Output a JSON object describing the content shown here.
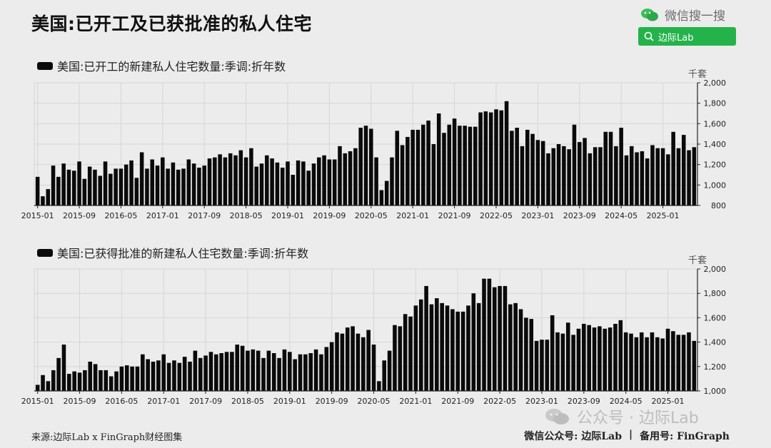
{
  "header": {
    "title": "美国:已开工及已获批准的私人住宅",
    "wechat_label": "微信搜一搜",
    "search_label": "边际Lab",
    "wechat_icon": "wechat-icon",
    "search_icon": "search-icon",
    "accent_color": "#24b34a"
  },
  "footer": {
    "source": "来源:边际Lab x FinGraph财经图集",
    "account": "微信公众号: 边际Lab",
    "separator": "|",
    "backup": "备用号: FinGraph",
    "watermark": "公众号 · 边际Lab"
  },
  "chart_data": [
    {
      "type": "bar",
      "legend": "美国:已开工的新建私人住宅数量:季调:折年数",
      "unit": "千套",
      "ylim": [
        800,
        2000
      ],
      "yticks": [
        800,
        1000,
        1200,
        1400,
        1600,
        1800,
        2000
      ],
      "ytick_labels": [
        "800",
        "1,000",
        "1,200",
        "1,400",
        "1,600",
        "1,800",
        "2,000"
      ],
      "grid": true,
      "bar_color": "#0a0a0a",
      "x_tick_labels": [
        "2015-01",
        "2015-09",
        "2016-05",
        "2017-01",
        "2017-09",
        "2018-05",
        "2019-01",
        "2019-09",
        "2020-05",
        "2021-01",
        "2021-09",
        "2022-05",
        "2023-01",
        "2023-09",
        "2024-05",
        "2025-01"
      ],
      "x_tick_every": 8,
      "start_month": "2015-01",
      "values": [
        1080,
        890,
        960,
        1190,
        1080,
        1210,
        1150,
        1140,
        1230,
        1060,
        1180,
        1150,
        1090,
        1230,
        1110,
        1160,
        1160,
        1200,
        1240,
        1070,
        1320,
        1160,
        1250,
        1190,
        1270,
        1160,
        1220,
        1150,
        1160,
        1250,
        1210,
        1170,
        1190,
        1260,
        1270,
        1300,
        1270,
        1310,
        1290,
        1340,
        1270,
        1360,
        1180,
        1210,
        1290,
        1260,
        1220,
        1170,
        1230,
        1100,
        1240,
        1230,
        1140,
        1210,
        1270,
        1290,
        1250,
        1250,
        1380,
        1310,
        1330,
        1360,
        1560,
        1580,
        1550,
        1270,
        950,
        1040,
        1270,
        1530,
        1390,
        1470,
        1540,
        1540,
        1590,
        1630,
        1400,
        1700,
        1510,
        1590,
        1650,
        1580,
        1580,
        1570,
        1570,
        1710,
        1720,
        1710,
        1740,
        1730,
        1820,
        1530,
        1560,
        1380,
        1540,
        1500,
        1440,
        1430,
        1310,
        1360,
        1400,
        1380,
        1350,
        1590,
        1420,
        1460,
        1310,
        1370,
        1370,
        1520,
        1520,
        1380,
        1560,
        1290,
        1380,
        1320,
        1330,
        1260,
        1390,
        1360,
        1360,
        1300,
        1520,
        1360,
        1490,
        1340,
        1370
      ]
    },
    {
      "type": "bar",
      "legend": "美国:已获得批准的新建私人住宅数量:季调:折年数",
      "unit": "千套",
      "ylim": [
        1000,
        2000
      ],
      "yticks": [
        1000,
        1200,
        1400,
        1600,
        1800,
        2000
      ],
      "ytick_labels": [
        "1,000",
        "1,200",
        "1,400",
        "1,600",
        "1,800",
        "2,000"
      ],
      "grid": true,
      "bar_color": "#0a0a0a",
      "x_tick_labels": [
        "2015-01",
        "2015-09",
        "2016-05",
        "2017-01",
        "2017-09",
        "2018-05",
        "2019-01",
        "2019-09",
        "2020-05",
        "2021-01",
        "2021-09",
        "2022-05",
        "2023-01",
        "2023-09",
        "2024-05",
        "2025-01"
      ],
      "x_tick_every": 8,
      "start_month": "2015-01",
      "values": [
        1050,
        1130,
        1080,
        1170,
        1270,
        1380,
        1140,
        1160,
        1150,
        1170,
        1240,
        1220,
        1170,
        1170,
        1120,
        1160,
        1200,
        1210,
        1200,
        1200,
        1300,
        1260,
        1240,
        1250,
        1300,
        1230,
        1250,
        1230,
        1280,
        1240,
        1330,
        1270,
        1290,
        1320,
        1300,
        1310,
        1320,
        1320,
        1380,
        1370,
        1330,
        1340,
        1330,
        1270,
        1330,
        1310,
        1270,
        1340,
        1320,
        1260,
        1300,
        1300,
        1310,
        1340,
        1300,
        1360,
        1400,
        1480,
        1470,
        1520,
        1530,
        1470,
        1440,
        1500,
        1380,
        1080,
        1250,
        1330,
        1540,
        1530,
        1630,
        1610,
        1700,
        1750,
        1860,
        1710,
        1760,
        1720,
        1700,
        1670,
        1650,
        1650,
        1700,
        1800,
        1720,
        1920,
        1920,
        1850,
        1860,
        1860,
        1710,
        1720,
        1670,
        1600,
        1590,
        1410,
        1420,
        1420,
        1620,
        1480,
        1470,
        1560,
        1460,
        1510,
        1550,
        1540,
        1520,
        1530,
        1510,
        1520,
        1550,
        1580,
        1480,
        1470,
        1440,
        1480,
        1440,
        1480,
        1440,
        1430,
        1510,
        1490,
        1460,
        1460,
        1480,
        1410
      ]
    }
  ]
}
